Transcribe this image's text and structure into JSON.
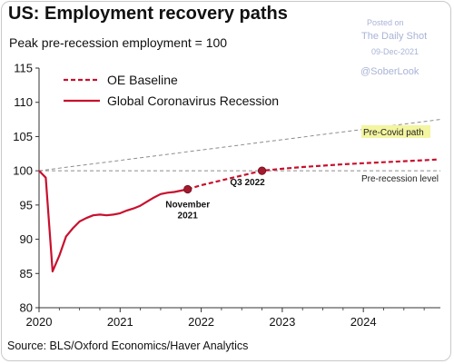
{
  "title": "US: Employment recovery paths",
  "subtitle": "Peak pre-recession employment = 100",
  "source": "Source: BLS/Oxford Economics/Haver Analytics",
  "watermark": {
    "posted": "Posted on",
    "publication": "The Daily Shot",
    "date": "09-Dec-2021",
    "handle": "@SoberLook"
  },
  "colors": {
    "series": "#c8102e",
    "reference": "#8c8c8c",
    "highlight": "#f3f5a0"
  },
  "chart_data": {
    "type": "line",
    "title": "US: Employment recovery paths",
    "subtitle": "Peak pre-recession employment = 100",
    "xlabel": "",
    "ylabel": "",
    "xlim": [
      2020,
      2024.95
    ],
    "ylim": [
      80,
      115
    ],
    "x_ticks": [
      2020,
      2021,
      2022,
      2023,
      2024
    ],
    "x_tick_labels": [
      "2020",
      "2021",
      "2022",
      "2023",
      "2024"
    ],
    "y_ticks": [
      80,
      85,
      90,
      95,
      100,
      105,
      110,
      115
    ],
    "y_tick_labels": [
      "80",
      "85",
      "90",
      "95",
      "100",
      "105",
      "110",
      "115"
    ],
    "grid": false,
    "legend_position": "top-left",
    "series": [
      {
        "name": "Global Coronavirus Recession",
        "style": "solid",
        "x": [
          2020.0,
          2020.083,
          2020.167,
          2020.25,
          2020.333,
          2020.417,
          2020.5,
          2020.583,
          2020.667,
          2020.75,
          2020.833,
          2020.917,
          2021.0,
          2021.083,
          2021.167,
          2021.25,
          2021.333,
          2021.417,
          2021.5,
          2021.583,
          2021.667,
          2021.75,
          2021.833
        ],
        "values": [
          100.0,
          99.0,
          85.3,
          87.6,
          90.4,
          91.6,
          92.6,
          93.1,
          93.5,
          93.6,
          93.5,
          93.6,
          93.8,
          94.2,
          94.5,
          94.9,
          95.5,
          96.1,
          96.6,
          96.8,
          96.9,
          97.1,
          97.3
        ]
      },
      {
        "name": "OE Baseline",
        "style": "dashed",
        "x": [
          2021.833,
          2022.0,
          2022.25,
          2022.5,
          2022.75,
          2023.0,
          2023.25,
          2023.5,
          2023.75,
          2024.0,
          2024.25,
          2024.5,
          2024.75,
          2024.92
        ],
        "values": [
          97.3,
          97.9,
          98.6,
          99.3,
          100.0,
          100.3,
          100.55,
          100.75,
          100.95,
          101.1,
          101.25,
          101.4,
          101.55,
          101.65
        ]
      },
      {
        "name": "Pre-Covid path",
        "style": "reference-dashed",
        "x": [
          2020.0,
          2024.95
        ],
        "values": [
          100.0,
          107.5
        ]
      },
      {
        "name": "Pre-recession level",
        "style": "reference-dashed",
        "x": [
          2020.0,
          2024.95
        ],
        "values": [
          100.0,
          100.0
        ]
      }
    ],
    "markers": [
      {
        "x": 2021.833,
        "y": 97.3,
        "label_line1": "November",
        "label_line2": "2021"
      },
      {
        "x": 2022.75,
        "y": 100.0,
        "label_line1": "Q3 2022",
        "label_line2": ""
      }
    ],
    "annotations": {
      "pre_covid": "Pre-Covid path",
      "pre_recession": "Pre-recession level"
    },
    "legend": [
      {
        "label": "OE Baseline",
        "style": "dashed"
      },
      {
        "label": "Global Coronavirus Recession",
        "style": "solid"
      }
    ]
  }
}
